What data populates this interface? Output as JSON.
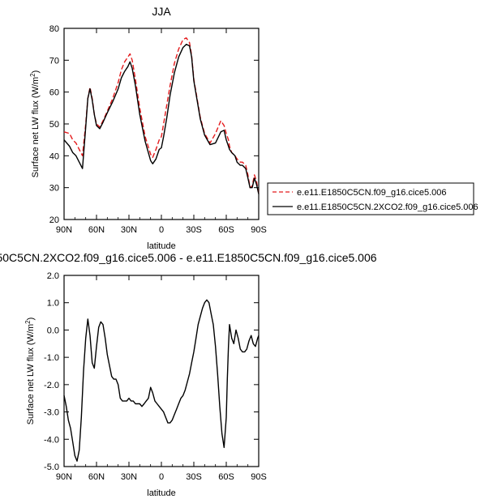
{
  "chart_data": [
    {
      "type": "line",
      "title": "JJA",
      "xlabel": "latitude",
      "ylabel": "Surface net LW flux (W/m",
      "ylabel_sup": "2",
      "ylabel_close": ")",
      "xlim": [
        90,
        -90
      ],
      "ylim": [
        20,
        80
      ],
      "xticks": [
        {
          "value": 90,
          "label": "90N"
        },
        {
          "value": 60,
          "label": "60N"
        },
        {
          "value": 30,
          "label": "30N"
        },
        {
          "value": 0,
          "label": "0"
        },
        {
          "value": -30,
          "label": "30S"
        },
        {
          "value": -60,
          "label": "60S"
        },
        {
          "value": -90,
          "label": "90S"
        }
      ],
      "yticks": [
        20,
        30,
        40,
        50,
        60,
        70,
        80
      ],
      "legend_position": "right",
      "series": [
        {
          "name": "e.e11.E1850C5CN.f09_g16.cice5.006",
          "color": "#e41a1c",
          "style": "dashed",
          "x": [
            90,
            85,
            82,
            79,
            76,
            73,
            70,
            68,
            66,
            64,
            62,
            60,
            57,
            54,
            50,
            45,
            40,
            37,
            34,
            31,
            29,
            27,
            24,
            20,
            15,
            10,
            8,
            5,
            2,
            0,
            -2,
            -5,
            -8,
            -12,
            -16,
            -20,
            -23,
            -26,
            -28,
            -30,
            -33,
            -36,
            -40,
            -45,
            -50,
            -55,
            -58,
            -60,
            -62,
            -63,
            -65,
            -68,
            -70,
            -73,
            -75,
            -78,
            -80,
            -82,
            -84,
            -86,
            -88,
            -90
          ],
          "values": [
            47.5,
            47,
            45,
            44,
            42,
            40,
            50,
            58,
            61.5,
            58,
            53,
            50,
            49,
            51,
            54,
            58,
            63,
            67,
            69.5,
            71,
            72,
            70,
            64,
            55,
            46,
            40.5,
            39.5,
            42,
            45,
            46,
            50,
            56,
            62,
            69,
            73.5,
            76.5,
            77,
            75.5,
            71.5,
            64,
            58,
            52,
            47,
            44,
            47,
            51,
            49.5,
            47,
            45,
            43,
            41,
            40,
            39,
            38,
            38,
            37,
            34,
            30,
            30.5,
            34,
            32,
            28
          ]
        },
        {
          "name": "e.e11.E1850C5CN.2XCO2.f09_g16.cice5.006",
          "color": "#000000",
          "style": "solid",
          "x": [
            90,
            85,
            82,
            79,
            76,
            73,
            70,
            68,
            66,
            64,
            62,
            60,
            57,
            54,
            50,
            45,
            40,
            37,
            34,
            31,
            29,
            27,
            24,
            20,
            15,
            10,
            8,
            5,
            2,
            0,
            -2,
            -5,
            -8,
            -12,
            -16,
            -20,
            -23,
            -26,
            -28,
            -30,
            -33,
            -36,
            -40,
            -45,
            -50,
            -55,
            -58,
            -60,
            -62,
            -63,
            -65,
            -68,
            -70,
            -73,
            -75,
            -78,
            -80,
            -82,
            -84,
            -86,
            -88,
            -90
          ],
          "values": [
            45,
            43,
            41,
            40,
            38,
            36,
            49,
            58,
            61,
            57.5,
            53,
            49.5,
            48.5,
            50.5,
            53.5,
            57,
            61,
            64.5,
            66.5,
            68,
            69.5,
            67.5,
            62,
            53,
            44.5,
            38.5,
            37.5,
            39,
            42,
            42.5,
            46,
            52,
            59,
            66,
            71,
            74,
            75,
            74.5,
            71,
            63.5,
            57.5,
            51.5,
            46.5,
            43.5,
            44,
            47.5,
            48,
            45,
            43,
            42,
            41,
            40,
            38,
            37,
            37,
            36,
            33,
            30,
            30,
            33,
            31,
            28
          ]
        }
      ]
    },
    {
      "type": "line",
      "title": "50C5CN.2XCO2.f09_g16.cice5.006 - e.e11.E1850C5CN.f09_g16.cice5.006",
      "xlabel": "latitude",
      "ylabel": "Surface net LW flux (W/m",
      "ylabel_sup": "2",
      "ylabel_close": ")",
      "xlim": [
        90,
        -90
      ],
      "ylim": [
        -5,
        2
      ],
      "xticks": [
        {
          "value": 90,
          "label": "90N"
        },
        {
          "value": 60,
          "label": "60N"
        },
        {
          "value": 30,
          "label": "30N"
        },
        {
          "value": 0,
          "label": "0"
        },
        {
          "value": -30,
          "label": "30S"
        },
        {
          "value": -60,
          "label": "60S"
        },
        {
          "value": -90,
          "label": "90S"
        }
      ],
      "yticks": [
        {
          "value": 2,
          "label": "2.0"
        },
        {
          "value": 1,
          "label": "1.0"
        },
        {
          "value": 0,
          "label": "0.0"
        },
        {
          "value": -1,
          "label": "-1.0"
        },
        {
          "value": -2,
          "label": "-2.0"
        },
        {
          "value": -3,
          "label": "-3.0"
        },
        {
          "value": -4,
          "label": "-4.0"
        },
        {
          "value": -5,
          "label": "-5.0"
        }
      ],
      "series": [
        {
          "color": "#000000",
          "style": "solid",
          "x": [
            90,
            88,
            86,
            84,
            82,
            80,
            78,
            76,
            74,
            72,
            70,
            68,
            66,
            64,
            62,
            60,
            58,
            56,
            54,
            52,
            50,
            48,
            46,
            44,
            42,
            40,
            38,
            36,
            34,
            32,
            30,
            28,
            26,
            24,
            22,
            20,
            18,
            16,
            14,
            12,
            10,
            8,
            6,
            4,
            2,
            0,
            -2,
            -4,
            -6,
            -8,
            -10,
            -12,
            -14,
            -16,
            -18,
            -20,
            -22,
            -24,
            -26,
            -28,
            -30,
            -32,
            -34,
            -36,
            -38,
            -40,
            -42,
            -44,
            -46,
            -48,
            -50,
            -52,
            -54,
            -56,
            -58,
            -60,
            -61,
            -62,
            -63,
            -65,
            -67,
            -69,
            -71,
            -73,
            -75,
            -77,
            -79,
            -81,
            -83,
            -85,
            -87,
            -89,
            -90
          ],
          "values": [
            -2.4,
            -2.8,
            -3.3,
            -3.6,
            -4.1,
            -4.6,
            -4.8,
            -4.4,
            -3.2,
            -1.5,
            -0.3,
            0.4,
            -0.2,
            -1.2,
            -1.4,
            -0.6,
            0.1,
            0.3,
            0.2,
            -0.3,
            -0.9,
            -1.3,
            -1.7,
            -1.8,
            -1.8,
            -2.0,
            -2.5,
            -2.6,
            -2.6,
            -2.6,
            -2.5,
            -2.6,
            -2.6,
            -2.7,
            -2.7,
            -2.7,
            -2.8,
            -2.7,
            -2.6,
            -2.5,
            -2.1,
            -2.3,
            -2.6,
            -2.7,
            -2.8,
            -2.9,
            -3.0,
            -3.2,
            -3.4,
            -3.4,
            -3.3,
            -3.1,
            -2.9,
            -2.7,
            -2.5,
            -2.4,
            -2.2,
            -1.9,
            -1.6,
            -1.2,
            -0.8,
            -0.3,
            0.2,
            0.5,
            0.8,
            1.0,
            1.1,
            1.0,
            0.6,
            0.2,
            -0.6,
            -1.6,
            -2.8,
            -3.8,
            -4.3,
            -3.2,
            -1.8,
            -0.6,
            0.2,
            -0.3,
            -0.5,
            0.0,
            -0.3,
            -0.7,
            -0.8,
            -0.8,
            -0.7,
            -0.4,
            -0.2,
            -0.5,
            -0.6,
            -0.3,
            -0.2
          ]
        }
      ]
    }
  ]
}
